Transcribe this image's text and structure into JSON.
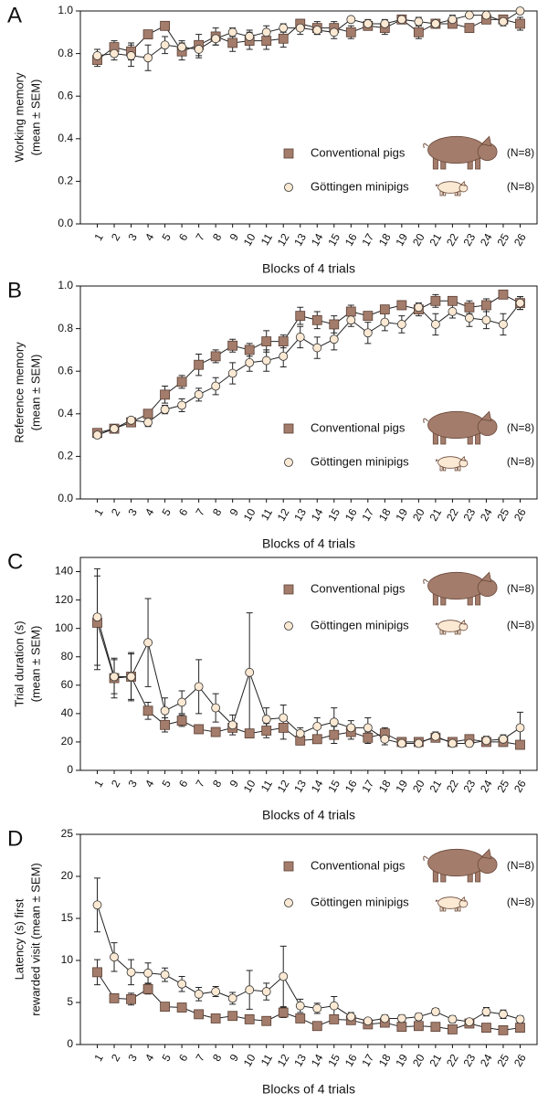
{
  "chart_data": [
    {
      "type": "line",
      "panel_label": "A",
      "ylabel": [
        "Working memory",
        "(mean ± SEM)"
      ],
      "xlabel": "Blocks of 4 trials",
      "categories": [
        "1",
        "2",
        "3",
        "4",
        "5",
        "6",
        "7",
        "8",
        "9",
        "10",
        "11",
        "12",
        "13",
        "14",
        "15",
        "16",
        "17",
        "18",
        "19",
        "20",
        "21",
        "22",
        "23",
        "24",
        "25",
        "26"
      ],
      "ylim": [
        0,
        1
      ],
      "yticks": [
        {
          "value": 0,
          "label": "0.0"
        },
        0.2,
        0.4,
        0.6,
        0.8,
        {
          "value": 1,
          "label": "1.0"
        }
      ],
      "legend": "lower right",
      "series": [
        {
          "name": "Conventional pigs",
          "n_label": "(N=8)",
          "color": "#a37c6b",
          "marker": "square",
          "values": [
            0.77,
            0.83,
            0.81,
            0.89,
            0.93,
            0.81,
            0.84,
            0.88,
            0.85,
            0.86,
            0.86,
            0.87,
            0.94,
            0.92,
            0.92,
            0.9,
            0.93,
            0.92,
            0.96,
            0.9,
            0.94,
            0.94,
            0.92,
            0.96,
            0.96,
            0.94
          ],
          "errors": [
            0.03,
            0.03,
            0.04,
            0.02,
            0.02,
            0.04,
            0.05,
            0.04,
            0.04,
            0.04,
            0.04,
            0.04,
            0.02,
            0.03,
            0.03,
            0.03,
            0.02,
            0.03,
            0.01,
            0.03,
            0.02,
            0.02,
            0.01,
            0.02,
            0.02,
            0.03
          ]
        },
        {
          "name": "Göttingen minipigs",
          "n_label": "(N=8)",
          "color": "#fbe9d3",
          "marker": "circle",
          "values": [
            0.79,
            0.8,
            0.79,
            0.78,
            0.84,
            0.83,
            0.82,
            0.87,
            0.9,
            0.88,
            0.9,
            0.92,
            0.92,
            0.91,
            0.9,
            0.96,
            0.94,
            0.94,
            0.96,
            0.95,
            0.94,
            0.96,
            0.98,
            0.98,
            0.95,
            1.0
          ],
          "errors": [
            0.03,
            0.03,
            0.05,
            0.06,
            0.04,
            0.03,
            0.04,
            0.03,
            0.02,
            0.03,
            0.03,
            0.02,
            0.03,
            0.02,
            0.03,
            0.01,
            0.02,
            0.02,
            0.01,
            0.02,
            0.02,
            0.02,
            0.01,
            0.01,
            0.02,
            0.0
          ]
        }
      ]
    },
    {
      "type": "line",
      "panel_label": "B",
      "ylabel": [
        "Reference memory",
        "(mean ± SEM)"
      ],
      "xlabel": "Blocks of 4 trials",
      "categories": [
        "1",
        "2",
        "3",
        "4",
        "5",
        "6",
        "7",
        "8",
        "9",
        "10",
        "11",
        "12",
        "13",
        "14",
        "15",
        "16",
        "17",
        "18",
        "19",
        "20",
        "21",
        "22",
        "23",
        "24",
        "25",
        "26"
      ],
      "ylim": [
        0,
        1
      ],
      "yticks": [
        {
          "value": 0,
          "label": "0.0"
        },
        0.2,
        0.4,
        0.6,
        0.8,
        {
          "value": 1,
          "label": "1.0"
        }
      ],
      "legend": "lower right",
      "series": [
        {
          "name": "Conventional pigs",
          "n_label": "(N=8)",
          "color": "#a37c6b",
          "marker": "square",
          "values": [
            0.31,
            0.33,
            0.36,
            0.4,
            0.49,
            0.55,
            0.63,
            0.67,
            0.72,
            0.7,
            0.74,
            0.74,
            0.86,
            0.84,
            0.82,
            0.88,
            0.86,
            0.89,
            0.91,
            0.89,
            0.93,
            0.93,
            0.9,
            0.91,
            0.96,
            0.92
          ],
          "errors": [
            0.02,
            0.02,
            0.02,
            0.02,
            0.04,
            0.03,
            0.05,
            0.03,
            0.03,
            0.03,
            0.05,
            0.03,
            0.04,
            0.04,
            0.04,
            0.03,
            0.02,
            0.02,
            0.02,
            0.03,
            0.03,
            0.02,
            0.03,
            0.03,
            0.01,
            0.03
          ]
        },
        {
          "name": "Göttingen minipigs",
          "n_label": "(N=8)",
          "color": "#fbe9d3",
          "marker": "circle",
          "values": [
            0.3,
            0.33,
            0.37,
            0.36,
            0.42,
            0.44,
            0.49,
            0.53,
            0.59,
            0.64,
            0.65,
            0.67,
            0.76,
            0.71,
            0.75,
            0.84,
            0.78,
            0.83,
            0.82,
            0.9,
            0.82,
            0.88,
            0.85,
            0.84,
            0.82,
            0.92
          ],
          "errors": [
            0.01,
            0.02,
            0.01,
            0.02,
            0.02,
            0.03,
            0.03,
            0.04,
            0.05,
            0.04,
            0.05,
            0.05,
            0.05,
            0.05,
            0.05,
            0.03,
            0.05,
            0.04,
            0.04,
            0.02,
            0.05,
            0.03,
            0.04,
            0.04,
            0.05,
            0.03
          ]
        }
      ]
    },
    {
      "type": "line",
      "panel_label": "C",
      "ylabel": [
        "Trial duration (s)",
        "(mean ± SEM)"
      ],
      "xlabel": "Blocks of 4 trials",
      "categories": [
        "1",
        "2",
        "3",
        "4",
        "5",
        "6",
        "7",
        "8",
        "9",
        "10",
        "11",
        "12",
        "13",
        "14",
        "15",
        "16",
        "17",
        "18",
        "19",
        "20",
        "21",
        "22",
        "23",
        "24",
        "25",
        "26"
      ],
      "ylim": [
        0,
        150
      ],
      "yticks": [
        0,
        20,
        40,
        60,
        80,
        100,
        120,
        140
      ],
      "legend": "upper right",
      "series": [
        {
          "name": "Conventional pigs",
          "n_label": "(N=8)",
          "color": "#a37c6b",
          "marker": "square",
          "values": [
            104,
            65,
            66,
            42,
            32,
            35,
            29,
            27,
            30,
            26,
            28,
            30,
            21,
            22,
            25,
            27,
            23,
            26,
            20,
            20,
            23,
            20,
            22,
            20,
            20,
            18
          ],
          "errors": [
            33,
            14,
            16,
            6,
            5,
            4,
            3,
            3,
            3,
            3,
            5,
            8,
            3,
            3,
            6,
            5,
            4,
            4,
            2,
            2,
            3,
            2,
            2,
            2,
            3,
            2
          ]
        },
        {
          "name": "Göttingen minipigs",
          "n_label": "(N=8)",
          "color": "#fbe9d3",
          "marker": "circle",
          "values": [
            108,
            66,
            66,
            90,
            42,
            48,
            59,
            44,
            32,
            69,
            36,
            37,
            26,
            31,
            34,
            30,
            30,
            22,
            19,
            19,
            24,
            19,
            19,
            21,
            22,
            30
          ],
          "errors": [
            34,
            12,
            17,
            31,
            9,
            8,
            19,
            10,
            7,
            42,
            8,
            9,
            4,
            6,
            10,
            5,
            7,
            4,
            2,
            2,
            3,
            2,
            2,
            3,
            3,
            11
          ]
        }
      ]
    },
    {
      "type": "line",
      "panel_label": "D",
      "ylabel": [
        "Latency (s) first",
        "rewarded visit (mean ± SEM)"
      ],
      "xlabel": "Blocks of 4 trials",
      "categories": [
        "1",
        "2",
        "3",
        "4",
        "5",
        "6",
        "7",
        "8",
        "9",
        "10",
        "11",
        "12",
        "13",
        "14",
        "15",
        "16",
        "17",
        "18",
        "19",
        "20",
        "21",
        "22",
        "23",
        "24",
        "25",
        "26"
      ],
      "ylim": [
        0,
        25
      ],
      "yticks": [
        0,
        5,
        10,
        15,
        20,
        25
      ],
      "legend": "upper right",
      "series": [
        {
          "name": "Conventional pigs",
          "n_label": "(N=8)",
          "color": "#a37c6b",
          "marker": "square",
          "values": [
            8.6,
            5.5,
            5.4,
            6.6,
            4.5,
            4.4,
            3.6,
            3.1,
            3.4,
            3.0,
            2.8,
            3.8,
            3.1,
            2.2,
            3.0,
            2.9,
            2.4,
            2.6,
            2.1,
            2.2,
            2.1,
            1.8,
            2.5,
            2.0,
            1.7,
            2.0
          ],
          "errors": [
            1.5,
            0.4,
            0.7,
            0.6,
            0.4,
            0.5,
            0.3,
            0.3,
            0.3,
            0.3,
            0.3,
            0.6,
            0.3,
            0.3,
            0.4,
            0.4,
            0.3,
            0.3,
            0.3,
            0.3,
            0.3,
            0.3,
            0.3,
            0.3,
            0.3,
            0.3
          ]
        },
        {
          "name": "Göttingen minipigs",
          "n_label": "(N=8)",
          "color": "#fbe9d3",
          "marker": "circle",
          "values": [
            16.6,
            10.4,
            8.6,
            8.5,
            8.3,
            7.2,
            6.0,
            6.3,
            5.5,
            6.5,
            6.3,
            8.1,
            4.6,
            4.3,
            4.6,
            3.3,
            2.8,
            3.1,
            3.1,
            3.3,
            3.9,
            3.0,
            2.7,
            3.9,
            3.6,
            3.0
          ],
          "errors": [
            3.2,
            1.7,
            1.5,
            1.2,
            0.8,
            0.9,
            0.8,
            0.6,
            0.7,
            2.3,
            1.0,
            3.6,
            0.8,
            0.6,
            1.1,
            0.5,
            0.3,
            0.4,
            0.4,
            0.4,
            0.4,
            0.4,
            0.3,
            0.5,
            0.5,
            0.4
          ]
        }
      ]
    }
  ]
}
